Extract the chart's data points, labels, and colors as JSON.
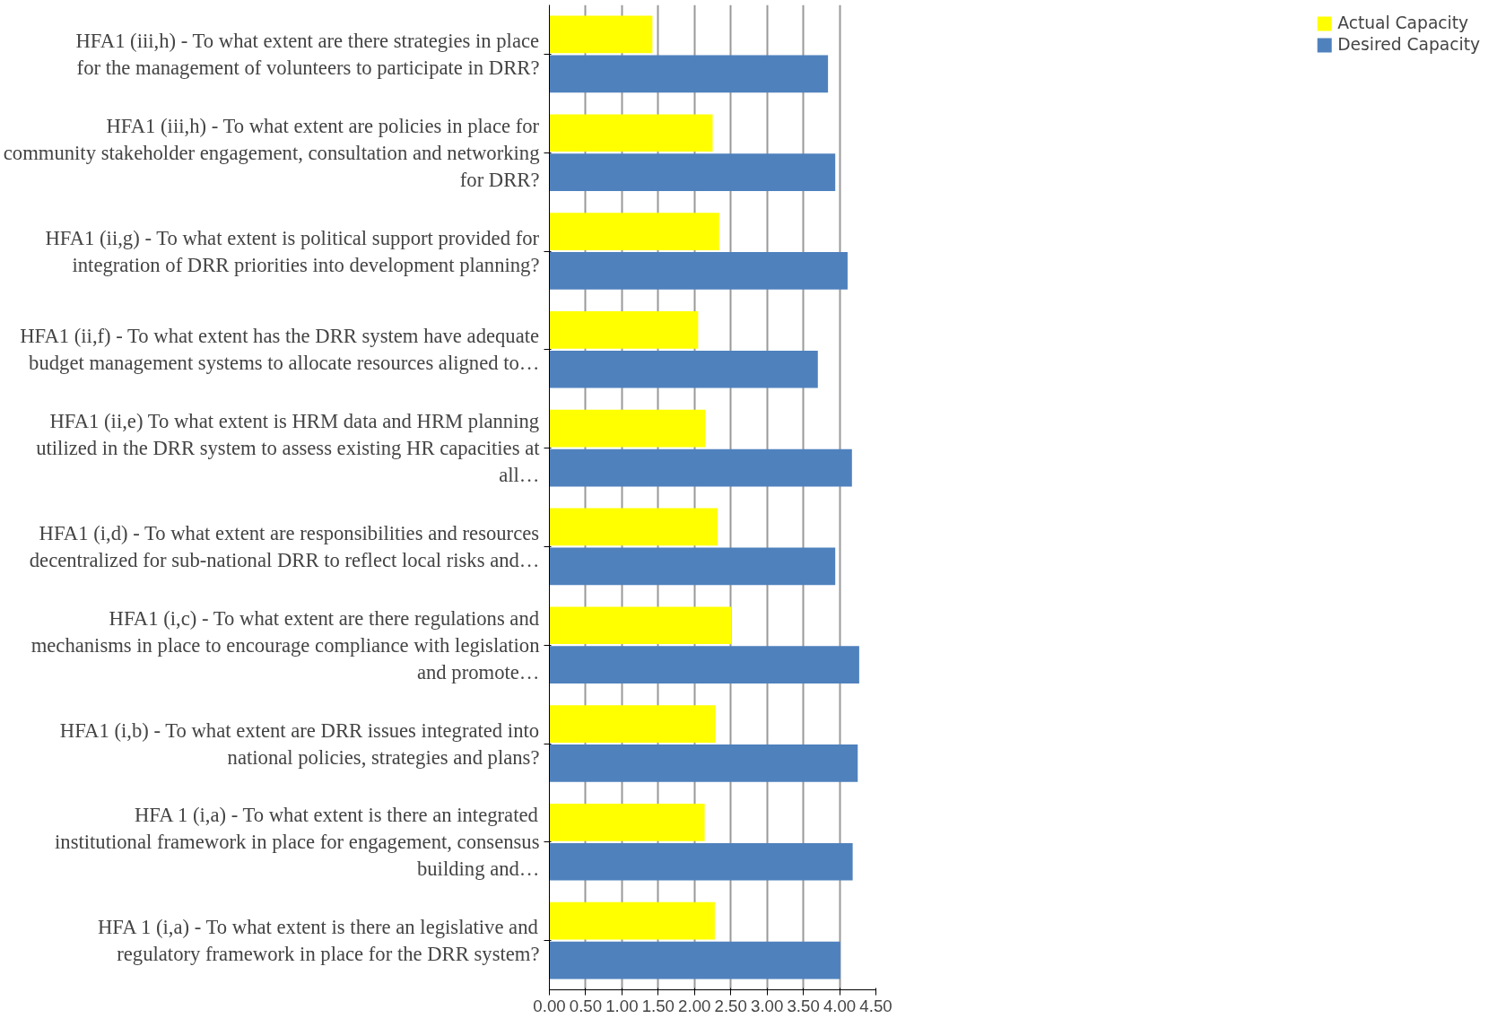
{
  "chart_data": {
    "type": "bar",
    "orientation": "horizontal",
    "categories": [
      "HFA1 (iii,h) - To what extent are there strategies in place for the management of volunteers to participate in DRR?",
      "HFA1 (iii,h) - To what extent are policies in place for community stakeholder engagement, consultation and networking for DRR?",
      "HFA1 (ii,g) - To what extent is political support provided for integration of DRR priorities into development planning?",
      "HFA1 (ii,f) - To what extent has the DRR system have adequate budget management systems to allocate resources aligned to…",
      "HFA1 (ii,e) To what extent is HRM data and HRM planning utilized in the DRR system to assess existing HR capacities at all…",
      "HFA1 (i,d) - To what extent are responsibilities and resources decentralized for sub-national DRR to reflect local risks and…",
      "HFA1 (i,c) - To what extent are there regulations and mechanisms in place to encourage compliance with legislation and promote…",
      "HFA1 (i,b) - To what extent are DRR issues integrated into national policies, strategies and plans?",
      "HFA 1 (i,a) - To what extent is there an integrated institutional framework in place for engagement, consensus building and…",
      "HFA 1 (i,a) - To what extent is there an legislative and regulatory framework in place for the DRR system?"
    ],
    "series": [
      {
        "name": "Actual Capacity",
        "color": "#ffff00",
        "values": [
          1.42,
          2.25,
          2.34,
          2.05,
          2.15,
          2.32,
          2.51,
          2.29,
          2.14,
          2.28
        ]
      },
      {
        "name": "Desired Capacity",
        "color": "#4f81bd",
        "values": [
          3.84,
          3.94,
          4.11,
          3.7,
          4.17,
          3.94,
          4.27,
          4.25,
          4.18,
          4.01
        ]
      }
    ],
    "xlim": [
      0,
      4.5
    ],
    "xticks": [
      {
        "value": 0,
        "label": "0.00"
      },
      {
        "value": 0.5,
        "label": "0.50"
      },
      {
        "value": 1,
        "label": "1.00"
      },
      {
        "value": 1.5,
        "label": "1.50"
      },
      {
        "value": 2,
        "label": "2.00"
      },
      {
        "value": 2.5,
        "label": "2.50"
      },
      {
        "value": 3,
        "label": "3.00"
      },
      {
        "value": 3.5,
        "label": "3.50"
      },
      {
        "value": 4,
        "label": "4.00"
      },
      {
        "value": 4.5,
        "label": "4.50"
      }
    ],
    "grid": "x",
    "legend": "right"
  }
}
